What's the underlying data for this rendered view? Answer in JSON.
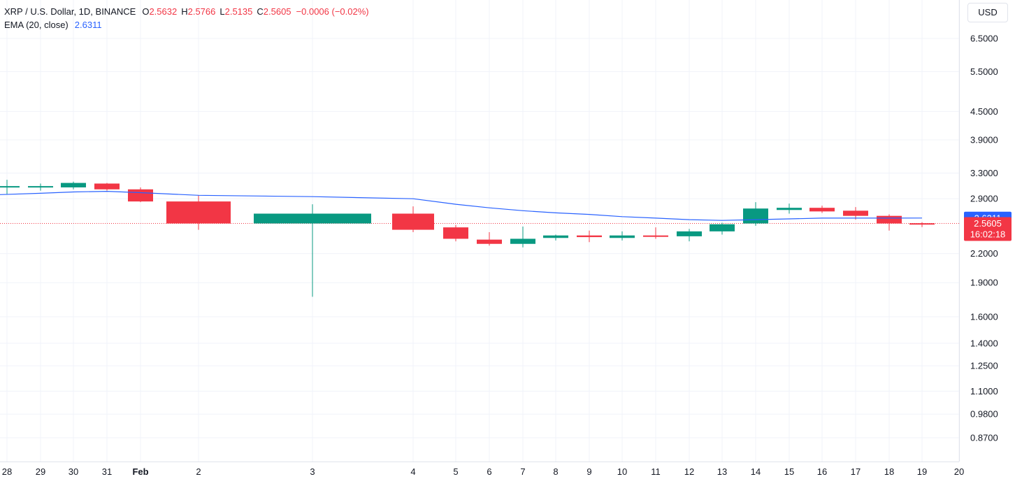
{
  "legend": {
    "symbol": "XRP / U.S. Dollar, 1D, BINANCE",
    "o_label": "O",
    "o": "2.5632",
    "h_label": "H",
    "h": "2.5766",
    "l_label": "L",
    "l": "2.5135",
    "c_label": "C",
    "c": "2.5605",
    "change": "−0.0006 (−0.02%)",
    "ema_label": "EMA (20, close)",
    "ema_value": "2.6311"
  },
  "currency_button": "USD",
  "colors": {
    "up": "#089981",
    "down": "#f23645",
    "ema": "#2962ff",
    "grid": "#f0f3fa",
    "text": "#131722"
  },
  "chart_data": {
    "type": "candlestick",
    "scale": "log",
    "ylim": [
      0.78,
      7.5
    ],
    "y_ticks": [
      "6.5000",
      "5.5000",
      "4.5000",
      "3.9000",
      "3.3000",
      "2.9000",
      "2.2000",
      "1.9000",
      "1.6000",
      "1.4000",
      "1.2500",
      "1.1000",
      "0.9800",
      "0.8700"
    ],
    "x_ticks": [
      "28",
      "29",
      "30",
      "31",
      "Feb",
      "2",
      "3",
      "4",
      "5",
      "6",
      "7",
      "8",
      "9",
      "10",
      "11",
      "12",
      "13",
      "14",
      "15",
      "16",
      "17",
      "18",
      "19",
      "20"
    ],
    "candles": [
      {
        "date": "28",
        "open": 3.08,
        "high": 3.19,
        "low": 2.97,
        "close": 3.09
      },
      {
        "date": "29",
        "open": 3.08,
        "high": 3.13,
        "low": 3.02,
        "close": 3.09
      },
      {
        "date": "30",
        "open": 3.07,
        "high": 3.16,
        "low": 3.04,
        "close": 3.14
      },
      {
        "date": "31",
        "open": 3.13,
        "high": 3.14,
        "low": 3.02,
        "close": 3.04
      },
      {
        "date": "Feb",
        "open": 3.04,
        "high": 3.07,
        "low": 2.85,
        "close": 2.86
      },
      {
        "date": "2",
        "open": 2.86,
        "high": 2.95,
        "low": 2.48,
        "close": 2.56
      },
      {
        "date": "3",
        "open": 2.56,
        "high": 2.82,
        "low": 1.77,
        "close": 2.69
      },
      {
        "date": "4",
        "open": 2.69,
        "high": 2.79,
        "low": 2.45,
        "close": 2.48
      },
      {
        "date": "5",
        "open": 2.51,
        "high": 2.54,
        "low": 2.34,
        "close": 2.37
      },
      {
        "date": "6",
        "open": 2.36,
        "high": 2.45,
        "low": 2.29,
        "close": 2.31
      },
      {
        "date": "7",
        "open": 2.31,
        "high": 2.52,
        "low": 2.27,
        "close": 2.37
      },
      {
        "date": "8",
        "open": 2.38,
        "high": 2.42,
        "low": 2.35,
        "close": 2.41
      },
      {
        "date": "9",
        "open": 2.41,
        "high": 2.47,
        "low": 2.33,
        "close": 2.39
      },
      {
        "date": "10",
        "open": 2.38,
        "high": 2.46,
        "low": 2.35,
        "close": 2.41
      },
      {
        "date": "11",
        "open": 2.41,
        "high": 2.51,
        "low": 2.37,
        "close": 2.4
      },
      {
        "date": "12",
        "open": 2.4,
        "high": 2.49,
        "low": 2.34,
        "close": 2.46
      },
      {
        "date": "13",
        "open": 2.46,
        "high": 2.57,
        "low": 2.42,
        "close": 2.55
      },
      {
        "date": "14",
        "open": 2.56,
        "high": 2.85,
        "low": 2.53,
        "close": 2.76
      },
      {
        "date": "15",
        "open": 2.74,
        "high": 2.83,
        "low": 2.69,
        "close": 2.77
      },
      {
        "date": "16",
        "open": 2.77,
        "high": 2.8,
        "low": 2.7,
        "close": 2.72
      },
      {
        "date": "17",
        "open": 2.73,
        "high": 2.78,
        "low": 2.61,
        "close": 2.66
      },
      {
        "date": "18",
        "open": 2.66,
        "high": 2.68,
        "low": 2.47,
        "close": 2.56
      },
      {
        "date": "19",
        "open": 2.5632,
        "high": 2.5766,
        "low": 2.5135,
        "close": 2.5605
      }
    ],
    "ema": [
      2.96,
      2.98,
      3.0,
      3.01,
      2.99,
      2.95,
      2.93,
      2.9,
      2.82,
      2.77,
      2.73,
      2.7,
      2.68,
      2.65,
      2.63,
      2.61,
      2.6,
      2.61,
      2.62,
      2.63,
      2.63,
      2.63,
      2.6311
    ],
    "ema_badge": "2.6311",
    "last_price_badge": "2.5605",
    "countdown": "16:02:18"
  }
}
